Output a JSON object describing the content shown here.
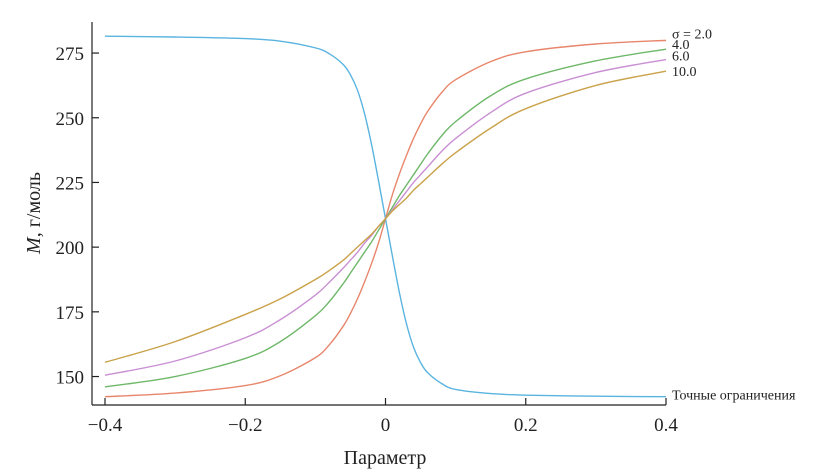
{
  "chart_data": {
    "type": "line",
    "title": "",
    "xlabel": "Параметр",
    "ylabel_italic": "M",
    "ylabel_rest": ", г/моль",
    "xlim": [
      -0.4,
      0.4
    ],
    "ylim": [
      139,
      287
    ],
    "xticks": [
      -0.4,
      -0.2,
      0,
      0.2,
      0.4
    ],
    "xtick_labels": [
      "−0.4",
      "−0.2",
      "0",
      "0.2",
      "0.4"
    ],
    "yticks": [
      150,
      175,
      200,
      225,
      250,
      275
    ],
    "ytick_labels": [
      "150",
      "175",
      "200",
      "225",
      "250",
      "275"
    ],
    "grid": false,
    "series": [
      {
        "name": "Точные ограничения",
        "color": "#5ab4e0",
        "x": [
          -0.4,
          -0.3,
          -0.2,
          -0.15,
          -0.1,
          -0.08,
          -0.06,
          -0.05,
          -0.04,
          -0.03,
          -0.02,
          -0.01,
          0,
          0.01,
          0.02,
          0.03,
          0.04,
          0.05,
          0.06,
          0.08,
          0.1,
          0.15,
          0.2,
          0.3,
          0.4
        ],
        "y": [
          281.5,
          281.2,
          280.6,
          279.6,
          277.0,
          274.7,
          270.5,
          266.6,
          260.7,
          251.7,
          239.8,
          225.7,
          211.0,
          196.3,
          182.2,
          170.3,
          161.3,
          155.4,
          151.5,
          147.3,
          145.0,
          143.4,
          142.8,
          142.4,
          142.2
        ]
      },
      {
        "name": "σ = 2.0",
        "color": "#e8866b",
        "x": [
          -0.4,
          -0.3,
          -0.2,
          -0.15,
          -0.1,
          -0.08,
          -0.06,
          -0.05,
          -0.04,
          -0.03,
          -0.02,
          -0.01,
          0,
          0.01,
          0.02,
          0.03,
          0.04,
          0.05,
          0.06,
          0.08,
          0.1,
          0.15,
          0.2,
          0.3,
          0.4
        ],
        "y": [
          142.2,
          143.6,
          146.5,
          150.3,
          157.3,
          162.3,
          169.6,
          174.4,
          180.0,
          186.5,
          193.6,
          201.6,
          211.0,
          220.4,
          228.4,
          235.5,
          242.0,
          247.6,
          252.4,
          259.7,
          264.7,
          271.7,
          275.5,
          278.5,
          279.9
        ]
      },
      {
        "name": "4.0",
        "color": "#6fb86a",
        "x": [
          -0.4,
          -0.3,
          -0.2,
          -0.15,
          -0.1,
          -0.08,
          -0.06,
          -0.05,
          -0.04,
          -0.03,
          -0.02,
          -0.01,
          0,
          0.01,
          0.02,
          0.03,
          0.04,
          0.05,
          0.06,
          0.08,
          0.1,
          0.15,
          0.2,
          0.3,
          0.4
        ],
        "y": [
          146.0,
          150.0,
          157.0,
          163.5,
          173.5,
          179.0,
          186.0,
          190.0,
          194.0,
          198.0,
          202.0,
          206.5,
          211.0,
          215.5,
          220.0,
          224.0,
          228.0,
          232.0,
          236.0,
          243.0,
          248.5,
          258.5,
          265.0,
          272.0,
          276.5
        ]
      },
      {
        "name": "6.0",
        "color": "#c98fd3",
        "x": [
          -0.4,
          -0.3,
          -0.2,
          -0.15,
          -0.1,
          -0.08,
          -0.06,
          -0.05,
          -0.04,
          -0.03,
          -0.02,
          -0.01,
          0,
          0.01,
          0.02,
          0.03,
          0.04,
          0.05,
          0.06,
          0.08,
          0.1,
          0.15,
          0.2,
          0.3,
          0.4
        ],
        "y": [
          150.5,
          156.0,
          165.0,
          172.0,
          181.5,
          186.5,
          192.0,
          195.0,
          198.0,
          201.5,
          204.5,
          208.0,
          211.0,
          214.5,
          218.0,
          221.5,
          225.0,
          228.0,
          231.0,
          237.0,
          242.0,
          252.0,
          259.5,
          267.5,
          272.5
        ]
      },
      {
        "name": "10.0",
        "color": "#c9a24a",
        "x": [
          -0.4,
          -0.3,
          -0.2,
          -0.15,
          -0.1,
          -0.08,
          -0.06,
          -0.05,
          -0.04,
          -0.03,
          -0.02,
          -0.01,
          0,
          0.01,
          0.02,
          0.03,
          0.04,
          0.05,
          0.06,
          0.08,
          0.1,
          0.15,
          0.2,
          0.3,
          0.4
        ],
        "y": [
          155.5,
          163.5,
          174.0,
          180.0,
          187.5,
          191.0,
          195.0,
          197.5,
          200.0,
          202.5,
          205.0,
          208.0,
          211.0,
          214.0,
          216.5,
          219.0,
          222.0,
          224.5,
          227.0,
          232.0,
          236.5,
          246.0,
          253.5,
          262.5,
          268.0
        ]
      }
    ]
  }
}
